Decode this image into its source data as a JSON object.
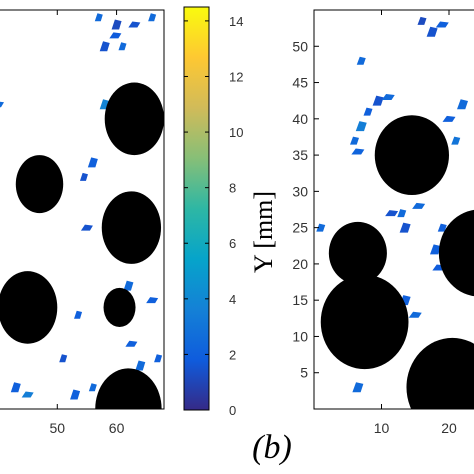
{
  "figure": {
    "panel_b_label": "(b)"
  },
  "colorbar": {
    "min": 0,
    "max": 14.5,
    "ticks": [
      0,
      2,
      4,
      6,
      8,
      10,
      12,
      14
    ],
    "tick_labels": [
      "0",
      "2",
      "4",
      "6",
      "8",
      "10",
      "12",
      "14"
    ],
    "colormap": [
      "#352A87",
      "#0F5CDD",
      "#1481D6",
      "#06A4CA",
      "#2EB7A4",
      "#87BF77",
      "#D1BB59",
      "#FEC832",
      "#F9FB0E"
    ]
  },
  "chart_data": [
    {
      "type": "heatmap",
      "panel": "left (a, cropped)",
      "xlabel": "",
      "ylabel": "",
      "xlim": [
        40,
        68
      ],
      "ylim": [
        0,
        55
      ],
      "x_ticks": [
        50,
        60
      ],
      "x_tick_labels": [
        "50",
        "60"
      ],
      "obstacles": [
        {
          "cx": 63,
          "cy": 40,
          "r": 5
        },
        {
          "cx": 47,
          "cy": 31,
          "r": 4
        },
        {
          "cx": 62.5,
          "cy": 25,
          "r": 5
        },
        {
          "cx": 45,
          "cy": 14,
          "r": 5
        },
        {
          "cx": 60.5,
          "cy": 14,
          "r": 2.7
        },
        {
          "cx": 62,
          "cy": 0,
          "r": 5.6
        }
      ],
      "vorticity_patches": [
        {
          "x": 57,
          "y": 54,
          "v": 2.5
        },
        {
          "x": 60,
          "y": 53,
          "v": 1.2
        },
        {
          "x": 63,
          "y": 53,
          "v": 1.5
        },
        {
          "x": 66,
          "y": 54,
          "v": 2.5
        },
        {
          "x": 58,
          "y": 50,
          "v": 1.5
        },
        {
          "x": 59.8,
          "y": 51.5,
          "v": 1.8
        },
        {
          "x": 61,
          "y": 50,
          "v": 2.5
        },
        {
          "x": 58,
          "y": 42,
          "v": 3.8
        },
        {
          "x": 40,
          "y": 42,
          "v": 2.5
        },
        {
          "x": 54.5,
          "y": 32,
          "v": 1.5
        },
        {
          "x": 56,
          "y": 34,
          "v": 2.0
        },
        {
          "x": 55,
          "y": 25,
          "v": 1.5
        },
        {
          "x": 53.5,
          "y": 13,
          "v": 2.0
        },
        {
          "x": 62,
          "y": 17,
          "v": 2.5
        },
        {
          "x": 66,
          "y": 15,
          "v": 2.0
        },
        {
          "x": 67,
          "y": 7,
          "v": 2.0
        },
        {
          "x": 64,
          "y": 6,
          "v": 2.5
        },
        {
          "x": 62.5,
          "y": 9,
          "v": 2.0
        },
        {
          "x": 51,
          "y": 7,
          "v": 1.5
        },
        {
          "x": 43,
          "y": 3,
          "v": 2.0
        },
        {
          "x": 45,
          "y": 2,
          "v": 3.5
        },
        {
          "x": 56,
          "y": 3,
          "v": 2.5
        },
        {
          "x": 53,
          "y": 2,
          "v": 2.0
        }
      ]
    },
    {
      "type": "heatmap",
      "panel": "(b)",
      "xlabel": "",
      "ylabel": "Y [mm]",
      "xlim": [
        0,
        24
      ],
      "ylim": [
        0,
        55
      ],
      "x_ticks": [
        10,
        20
      ],
      "x_tick_labels": [
        "10",
        "20"
      ],
      "y_ticks": [
        5,
        10,
        15,
        20,
        25,
        30,
        35,
        40,
        45,
        50
      ],
      "y_tick_labels": [
        "5",
        "10",
        "15",
        "20",
        "25",
        "30",
        "35",
        "40",
        "45",
        "50"
      ],
      "obstacles": [
        {
          "cx": 14.5,
          "cy": 35,
          "r": 5.5
        },
        {
          "cx": 6.5,
          "cy": 21.5,
          "r": 4.3
        },
        {
          "cx": 24.5,
          "cy": 21.5,
          "r": 6
        },
        {
          "cx": 7.5,
          "cy": 12,
          "r": 6.5
        },
        {
          "cx": 20.5,
          "cy": 3,
          "r": 6.8
        }
      ],
      "vorticity_patches": [
        {
          "x": 6,
          "y": 37,
          "v": 2.5
        },
        {
          "x": 7,
          "y": 39,
          "v": 3.5
        },
        {
          "x": 6.5,
          "y": 35.5,
          "v": 2.2
        },
        {
          "x": 8,
          "y": 41,
          "v": 2.0
        },
        {
          "x": 9.5,
          "y": 42.5,
          "v": 1.5
        },
        {
          "x": 11,
          "y": 43,
          "v": 2.5
        },
        {
          "x": 16,
          "y": 53.5,
          "v": 1.2
        },
        {
          "x": 17.5,
          "y": 52,
          "v": 1.5
        },
        {
          "x": 19,
          "y": 53,
          "v": 2.0
        },
        {
          "x": 7,
          "y": 48,
          "v": 2.5
        },
        {
          "x": 22,
          "y": 42,
          "v": 2.5
        },
        {
          "x": 20,
          "y": 40,
          "v": 2.0
        },
        {
          "x": 21,
          "y": 37,
          "v": 3.0
        },
        {
          "x": 12,
          "y": 34,
          "v": 2.0
        },
        {
          "x": 11.5,
          "y": 27,
          "v": 1.5
        },
        {
          "x": 13,
          "y": 27,
          "v": 2.5
        },
        {
          "x": 13.5,
          "y": 25,
          "v": 1.5
        },
        {
          "x": 15.5,
          "y": 28,
          "v": 2.5
        },
        {
          "x": 19,
          "y": 25,
          "v": 2.0
        },
        {
          "x": 18,
          "y": 22,
          "v": 2.0
        },
        {
          "x": 18.5,
          "y": 19.5,
          "v": 1.8
        },
        {
          "x": 1,
          "y": 25,
          "v": 2.5
        },
        {
          "x": 13.5,
          "y": 15,
          "v": 2.0
        },
        {
          "x": 15,
          "y": 13,
          "v": 2.5
        },
        {
          "x": 6,
          "y": 17.5,
          "v": 2.0
        },
        {
          "x": 6.5,
          "y": 3,
          "v": 2.5
        }
      ]
    }
  ]
}
